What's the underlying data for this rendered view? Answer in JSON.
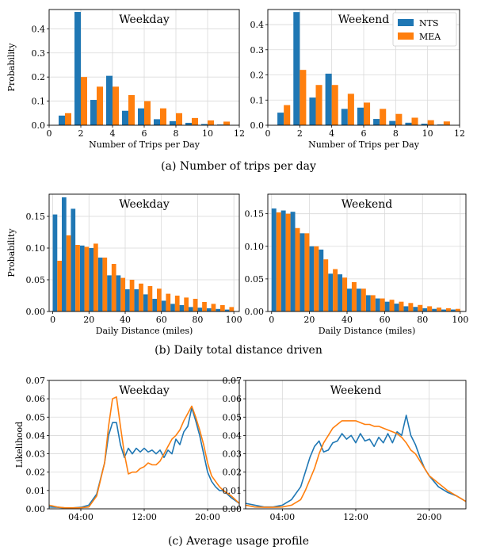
{
  "colors": {
    "NTS": "#1f77b4",
    "MEA": "#ff7f0e",
    "grid": "#d9d9d9"
  },
  "legend": {
    "entries": [
      "NTS",
      "MEA"
    ],
    "placement": "upper-right"
  },
  "captions": [
    "(a) Number of trips per day",
    "(b) Daily total distance driven",
    "(c) Average usage profile"
  ],
  "chart_data": [
    {
      "type": "bar",
      "title": "Weekday",
      "xlabel": "Number of Trips per Day",
      "ylabel": "Probability",
      "xlim": [
        0,
        12
      ],
      "ylim": [
        0,
        0.48
      ],
      "xticks": [
        0,
        2,
        4,
        6,
        8,
        10,
        12
      ],
      "xtick_labels": [
        "0",
        "2",
        "4",
        "6",
        "8",
        "10",
        "12"
      ],
      "yticks": [
        0,
        0.1,
        0.2,
        0.3,
        0.4
      ],
      "ytick_labels": [
        "0.0",
        "0.1",
        "0.2",
        "0.3",
        "0.4"
      ],
      "categories": [
        1,
        2,
        3,
        4,
        5,
        6,
        7,
        8,
        9,
        10,
        11
      ],
      "series": [
        {
          "name": "NTS",
          "values": [
            0.04,
            0.47,
            0.105,
            0.205,
            0.06,
            0.07,
            0.025,
            0.017,
            0.01,
            0.005,
            0.003
          ]
        },
        {
          "name": "MEA",
          "values": [
            0.05,
            0.2,
            0.16,
            0.16,
            0.125,
            0.1,
            0.07,
            0.05,
            0.03,
            0.02,
            0.015
          ]
        }
      ]
    },
    {
      "type": "bar",
      "title": "Weekend",
      "xlabel": "Number of Trips per Day",
      "ylabel": "",
      "xlim": [
        0,
        12
      ],
      "ylim": [
        0,
        0.46
      ],
      "xticks": [
        0,
        2,
        4,
        6,
        8,
        10,
        12
      ],
      "xtick_labels": [
        "0",
        "2",
        "4",
        "6",
        "8",
        "10",
        "12"
      ],
      "yticks": [
        0,
        0.1,
        0.2,
        0.3,
        0.4
      ],
      "ytick_labels": [
        "0.0",
        "0.1",
        "0.2",
        "0.3",
        "0.4"
      ],
      "categories": [
        1,
        2,
        3,
        4,
        5,
        6,
        7,
        8,
        9,
        10,
        11
      ],
      "legend": true,
      "series": [
        {
          "name": "NTS",
          "values": [
            0.05,
            0.45,
            0.11,
            0.205,
            0.065,
            0.07,
            0.025,
            0.017,
            0.01,
            0.006,
            0.003
          ]
        },
        {
          "name": "MEA",
          "values": [
            0.08,
            0.22,
            0.16,
            0.16,
            0.125,
            0.09,
            0.065,
            0.045,
            0.03,
            0.02,
            0.015
          ]
        }
      ]
    },
    {
      "type": "bar",
      "title": "Weekday",
      "xlabel": "Daily Distance (miles)",
      "ylabel": "Probability",
      "xlim": [
        -2,
        103
      ],
      "ylim": [
        0,
        0.185
      ],
      "xticks": [
        0,
        20,
        40,
        60,
        80,
        100
      ],
      "xtick_labels": [
        "0",
        "20",
        "40",
        "60",
        "80",
        "100"
      ],
      "yticks": [
        0,
        0.05,
        0.1,
        0.15
      ],
      "ytick_labels": [
        "0.00",
        "0.05",
        "0.10",
        "0.15"
      ],
      "categories": [
        2.5,
        7.5,
        12.5,
        17.5,
        22.5,
        27.5,
        32.5,
        37.5,
        42.5,
        47.5,
        52.5,
        57.5,
        62.5,
        67.5,
        72.5,
        77.5,
        82.5,
        87.5,
        92.5,
        97.5
      ],
      "series": [
        {
          "name": "NTS",
          "values": [
            0.153,
            0.18,
            0.162,
            0.104,
            0.1,
            0.085,
            0.057,
            0.057,
            0.035,
            0.035,
            0.027,
            0.02,
            0.017,
            0.012,
            0.01,
            0.007,
            0.006,
            0.005,
            0.004,
            0.003
          ]
        },
        {
          "name": "MEA",
          "values": [
            0.08,
            0.12,
            0.105,
            0.102,
            0.107,
            0.085,
            0.075,
            0.053,
            0.05,
            0.044,
            0.04,
            0.036,
            0.028,
            0.025,
            0.022,
            0.02,
            0.015,
            0.012,
            0.01,
            0.007
          ]
        }
      ]
    },
    {
      "type": "bar",
      "title": "Weekend",
      "xlabel": "Daily Distance (miles)",
      "ylabel": "",
      "xlim": [
        -2,
        103
      ],
      "ylim": [
        0,
        0.18
      ],
      "xticks": [
        0,
        20,
        40,
        60,
        80,
        100
      ],
      "xtick_labels": [
        "0",
        "20",
        "40",
        "60",
        "80",
        "100"
      ],
      "yticks": [
        0,
        0.05,
        0.1,
        0.15
      ],
      "ytick_labels": [
        "0.00",
        "0.05",
        "0.10",
        "0.15"
      ],
      "categories": [
        2.5,
        7.5,
        12.5,
        17.5,
        22.5,
        27.5,
        32.5,
        37.5,
        42.5,
        47.5,
        52.5,
        57.5,
        62.5,
        67.5,
        72.5,
        77.5,
        82.5,
        87.5,
        92.5,
        97.5
      ],
      "series": [
        {
          "name": "NTS",
          "values": [
            0.158,
            0.155,
            0.153,
            0.12,
            0.1,
            0.095,
            0.058,
            0.057,
            0.035,
            0.035,
            0.025,
            0.02,
            0.015,
            0.012,
            0.008,
            0.007,
            0.005,
            0.004,
            0.003,
            0.003
          ]
        },
        {
          "name": "MEA",
          "values": [
            0.152,
            0.15,
            0.128,
            0.12,
            0.1,
            0.08,
            0.065,
            0.052,
            0.045,
            0.035,
            0.025,
            0.02,
            0.018,
            0.015,
            0.013,
            0.01,
            0.008,
            0.006,
            0.005,
            0.004
          ]
        }
      ]
    },
    {
      "type": "line",
      "title": "Weekday",
      "xlabel": "",
      "ylabel": "Likelihood",
      "xlim": [
        0,
        24
      ],
      "ylim": [
        0,
        0.07
      ],
      "xticks": [
        4,
        12,
        20
      ],
      "xtick_labels": [
        "04:00",
        "12:00",
        "20:00"
      ],
      "yticks": [
        0,
        0.01,
        0.02,
        0.03,
        0.04,
        0.05,
        0.06,
        0.07
      ],
      "ytick_labels": [
        "0.00",
        "0.01",
        "0.02",
        "0.03",
        "0.04",
        "0.05",
        "0.06",
        "0.07"
      ],
      "series": [
        {
          "name": "NTS",
          "x": [
            0,
            1,
            2,
            3,
            4,
            5,
            6,
            7,
            7.5,
            8,
            8.5,
            9,
            9.5,
            10,
            10.5,
            11,
            11.5,
            12,
            12.5,
            13,
            13.5,
            14,
            14.5,
            15,
            15.5,
            16,
            16.5,
            17,
            17.5,
            18,
            18.5,
            19,
            19.5,
            20,
            20.5,
            21,
            21.5,
            22,
            23,
            24
          ],
          "y": [
            0.001,
            0.0008,
            0.0005,
            0.0005,
            0.0008,
            0.002,
            0.008,
            0.025,
            0.04,
            0.047,
            0.047,
            0.035,
            0.028,
            0.033,
            0.03,
            0.033,
            0.031,
            0.033,
            0.031,
            0.032,
            0.03,
            0.032,
            0.028,
            0.032,
            0.03,
            0.038,
            0.035,
            0.042,
            0.045,
            0.055,
            0.048,
            0.04,
            0.03,
            0.02,
            0.015,
            0.012,
            0.01,
            0.01,
            0.006,
            0.003
          ]
        },
        {
          "name": "MEA",
          "x": [
            0,
            1,
            2,
            3,
            4,
            5,
            6,
            7,
            7.5,
            8,
            8.5,
            9,
            9.5,
            10,
            10.5,
            11,
            11.5,
            12,
            12.5,
            13,
            13.5,
            14,
            14.5,
            15,
            15.5,
            16,
            16.5,
            17,
            17.5,
            18,
            18.5,
            19,
            19.5,
            20,
            20.5,
            21,
            21.5,
            22,
            23,
            24
          ],
          "y": [
            0.002,
            0.001,
            0.0005,
            0.0005,
            0.0006,
            0.001,
            0.007,
            0.025,
            0.045,
            0.06,
            0.061,
            0.045,
            0.03,
            0.019,
            0.02,
            0.02,
            0.022,
            0.023,
            0.025,
            0.024,
            0.024,
            0.026,
            0.03,
            0.034,
            0.038,
            0.04,
            0.043,
            0.048,
            0.052,
            0.056,
            0.05,
            0.043,
            0.035,
            0.025,
            0.018,
            0.015,
            0.012,
            0.01,
            0.007,
            0.003
          ]
        }
      ]
    },
    {
      "type": "line",
      "title": "Weekend",
      "xlabel": "",
      "ylabel": "",
      "xlim": [
        0,
        24
      ],
      "ylim": [
        0,
        0.07
      ],
      "xticks": [
        4,
        12,
        20
      ],
      "xtick_labels": [
        "04:00",
        "12:00",
        "20:00"
      ],
      "yticks": [
        0,
        0.01,
        0.02,
        0.03,
        0.04,
        0.05,
        0.06,
        0.07
      ],
      "ytick_labels": [
        "0.00",
        "0.01",
        "0.02",
        "0.03",
        "0.04",
        "0.05",
        "0.06",
        "0.07"
      ],
      "series": [
        {
          "name": "NTS",
          "x": [
            0,
            1,
            2,
            3,
            4,
            5,
            6,
            6.5,
            7,
            7.5,
            8,
            8.5,
            9,
            9.5,
            10,
            10.5,
            11,
            11.5,
            12,
            12.5,
            13,
            13.5,
            14,
            14.5,
            15,
            15.5,
            16,
            16.5,
            17,
            17.5,
            18,
            18.5,
            19,
            19.5,
            20,
            21,
            22,
            23,
            24
          ],
          "y": [
            0.003,
            0.002,
            0.001,
            0.001,
            0.002,
            0.005,
            0.012,
            0.02,
            0.028,
            0.034,
            0.037,
            0.031,
            0.032,
            0.036,
            0.037,
            0.041,
            0.038,
            0.04,
            0.036,
            0.041,
            0.037,
            0.038,
            0.034,
            0.039,
            0.036,
            0.041,
            0.036,
            0.042,
            0.04,
            0.051,
            0.04,
            0.035,
            0.028,
            0.022,
            0.018,
            0.012,
            0.009,
            0.007,
            0.004
          ]
        },
        {
          "name": "MEA",
          "x": [
            0,
            1,
            2,
            3,
            4,
            5,
            6,
            6.5,
            7,
            7.5,
            8,
            8.5,
            9,
            9.5,
            10,
            10.5,
            11,
            11.5,
            12,
            12.5,
            13,
            13.5,
            14,
            14.5,
            15,
            15.5,
            16,
            16.5,
            17,
            17.5,
            18,
            18.5,
            19,
            19.5,
            20,
            21,
            22,
            23,
            24
          ],
          "y": [
            0.002,
            0.001,
            0.0008,
            0.0008,
            0.001,
            0.002,
            0.005,
            0.01,
            0.016,
            0.022,
            0.03,
            0.036,
            0.04,
            0.044,
            0.046,
            0.048,
            0.048,
            0.048,
            0.048,
            0.047,
            0.046,
            0.046,
            0.045,
            0.045,
            0.044,
            0.043,
            0.042,
            0.041,
            0.039,
            0.036,
            0.032,
            0.03,
            0.026,
            0.022,
            0.018,
            0.014,
            0.01,
            0.007,
            0.004
          ]
        }
      ]
    }
  ]
}
